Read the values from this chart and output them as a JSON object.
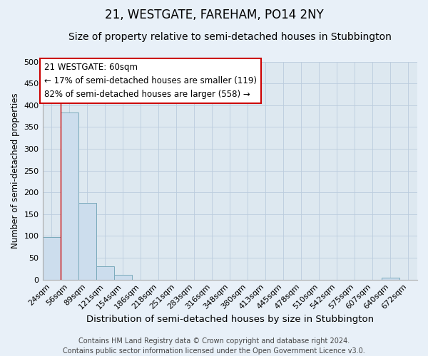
{
  "title": "21, WESTGATE, FAREHAM, PO14 2NY",
  "subtitle": "Size of property relative to semi-detached houses in Stubbington",
  "xlabel": "Distribution of semi-detached houses by size in Stubbington",
  "ylabel": "Number of semi-detached properties",
  "footer_line1": "Contains HM Land Registry data © Crown copyright and database right 2024.",
  "footer_line2": "Contains public sector information licensed under the Open Government Licence v3.0.",
  "categories": [
    "24sqm",
    "56sqm",
    "89sqm",
    "121sqm",
    "154sqm",
    "186sqm",
    "218sqm",
    "251sqm",
    "283sqm",
    "316sqm",
    "348sqm",
    "380sqm",
    "413sqm",
    "445sqm",
    "478sqm",
    "510sqm",
    "542sqm",
    "575sqm",
    "607sqm",
    "640sqm",
    "672sqm"
  ],
  "values": [
    97,
    383,
    175,
    30,
    10,
    0,
    0,
    0,
    0,
    0,
    0,
    0,
    0,
    0,
    0,
    0,
    0,
    0,
    0,
    5,
    0
  ],
  "bar_color": "#ccdded",
  "bar_edge_color": "#7aaabb",
  "grid_color": "#bbccdd",
  "background_color": "#dde8f0",
  "fig_background_color": "#e8f0f8",
  "annotation_line1": "21 WESTGATE: 60sqm",
  "annotation_line2": "← 17% of semi-detached houses are smaller (119)",
  "annotation_line3": "82% of semi-detached houses are larger (558) →",
  "annotation_box_color": "white",
  "annotation_box_edge": "#cc0000",
  "vline_color": "#cc0000",
  "vline_x": 0.5,
  "ylim": [
    0,
    500
  ],
  "yticks": [
    0,
    50,
    100,
    150,
    200,
    250,
    300,
    350,
    400,
    450,
    500
  ],
  "title_fontsize": 12,
  "subtitle_fontsize": 10,
  "xlabel_fontsize": 9.5,
  "ylabel_fontsize": 8.5,
  "tick_fontsize": 8,
  "annotation_fontsize": 8.5,
  "footer_fontsize": 7
}
